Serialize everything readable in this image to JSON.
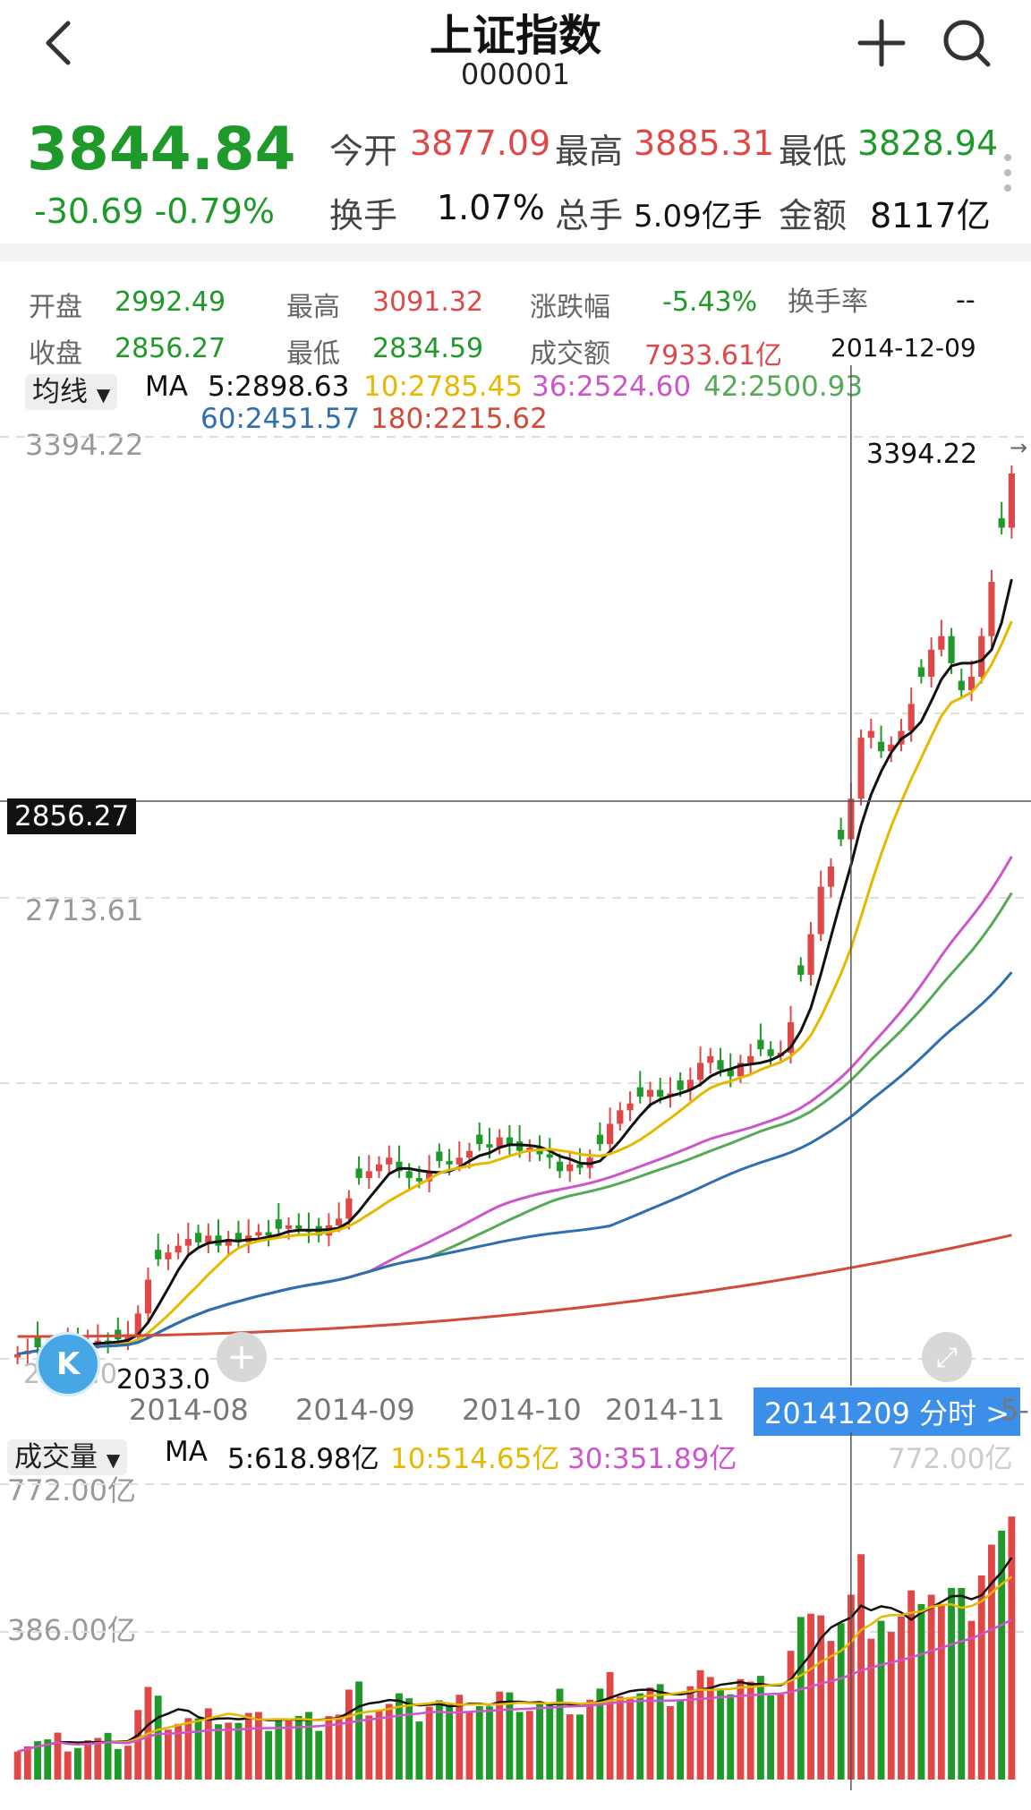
{
  "header": {
    "title": "上证指数",
    "code": "000001",
    "price": "3844.84",
    "change": "-30.69 -0.79%",
    "stats_row1": [
      {
        "label": "今开",
        "value": "3877.09",
        "color": "#e04848"
      },
      {
        "label": "最高",
        "value": "3885.31",
        "color": "#e04848"
      },
      {
        "label": "最低",
        "value": "3828.94",
        "color": "#1f9a2a"
      }
    ],
    "stats_row2": [
      {
        "label": "换手",
        "value": "1.07%",
        "color": "#111111"
      },
      {
        "label": "总手",
        "value": "5.09亿手",
        "color": "#111111"
      },
      {
        "label": "金额",
        "value": "8117亿",
        "color": "#111111"
      }
    ]
  },
  "day_info": {
    "open_label": "开盘",
    "open": "2992.49",
    "high_label": "最高",
    "high": "3091.32",
    "chg_label": "涨跌幅",
    "chg": "-5.43%",
    "turnover_label": "换手率",
    "turnover": "--",
    "close_label": "收盘",
    "close": "2856.27",
    "low_label": "最低",
    "low": "2834.59",
    "amount_label": "成交额",
    "amount": "7933.61亿",
    "date": "2014-12-09"
  },
  "ma_legend": {
    "dropdown": "均线",
    "prefix": "MA",
    "items": [
      {
        "text": "5:2898.63",
        "color": "#111111"
      },
      {
        "text": "10:2785.45",
        "color": "#e6b800"
      },
      {
        "text": "36:2524.60",
        "color": "#cc55cc"
      },
      {
        "text": "42:2500.93",
        "color": "#55aa55"
      },
      {
        "text": "60:2451.57",
        "color": "#2f6fb0"
      },
      {
        "text": "180:2215.62",
        "color": "#d14a3a"
      }
    ]
  },
  "price_axis": {
    "top": "3394.22",
    "mid": "2713.61",
    "bottom": "2033.0",
    "bottom_left": "2033.0",
    "cursor_value": "2856.27",
    "max_marker": "3394.22",
    "min_marker": "2033.0"
  },
  "x_axis": {
    "labels": [
      "2014-08",
      "2014-09",
      "2014-10",
      "2014-11"
    ],
    "cursor_label": "20141209 分时 >",
    "cut_label": "5-"
  },
  "volume_legend": {
    "dropdown": "成交量",
    "prefix": "MA",
    "items": [
      {
        "text": "5:618.98亿",
        "color": "#111111"
      },
      {
        "text": "10:514.65亿",
        "color": "#e6b800"
      },
      {
        "text": "30:351.89亿",
        "color": "#cc55cc"
      }
    ],
    "right_value": "772.00亿"
  },
  "volume_axis": {
    "top": "772.00亿",
    "mid": "386.00亿"
  },
  "chart_data": {
    "type": "candlestick",
    "ylim": [
      2033.0,
      3394.22
    ],
    "x_labels": [
      "2014-08",
      "2014-09",
      "2014-10",
      "2014-11"
    ],
    "candles_close": [
      2040,
      2045,
      2050,
      2048,
      2052,
      2055,
      2053,
      2058,
      2060,
      2057,
      2062,
      2065,
      2100,
      2150,
      2180,
      2190,
      2200,
      2210,
      2205,
      2215,
      2200,
      2210,
      2205,
      2215,
      2220,
      2215,
      2225,
      2230,
      2225,
      2220,
      2215,
      2230,
      2240,
      2270,
      2300,
      2310,
      2320,
      2330,
      2310,
      2300,
      2295,
      2310,
      2325,
      2320,
      2330,
      2340,
      2350,
      2345,
      2360,
      2350,
      2340,
      2345,
      2335,
      2330,
      2310,
      2320,
      2315,
      2330,
      2350,
      2380,
      2400,
      2410,
      2420,
      2430,
      2420,
      2425,
      2430,
      2445,
      2470,
      2480,
      2460,
      2450,
      2470,
      2480,
      2490,
      2480,
      2485,
      2530,
      2600,
      2660,
      2730,
      2760,
      2800,
      2860,
      2950,
      2960,
      2930,
      2940,
      2960,
      3000,
      3040,
      3080,
      3100,
      3060,
      3020,
      3040,
      3100,
      3180,
      3260,
      3340
    ],
    "ma": [
      {
        "name": "MA5",
        "last": 2898.63
      },
      {
        "name": "MA10",
        "last": 2785.45
      },
      {
        "name": "MA36",
        "last": 2524.6
      },
      {
        "name": "MA42",
        "last": 2500.93
      },
      {
        "name": "MA60",
        "last": 2451.57
      },
      {
        "name": "MA180",
        "last": 2215.62
      }
    ],
    "volume_ylim": [
      0,
      772.0
    ],
    "volume_ma": [
      {
        "name": "MA5",
        "last": 618.98
      },
      {
        "name": "MA10",
        "last": 514.65
      },
      {
        "name": "MA30",
        "last": 351.89
      }
    ]
  },
  "colors": {
    "up": "#e04848",
    "down": "#1f9a2a",
    "cursor": "#3b8fe8"
  }
}
